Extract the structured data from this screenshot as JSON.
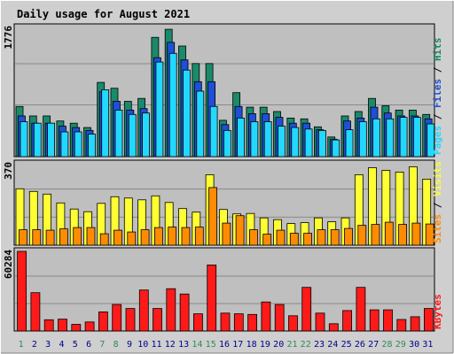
{
  "title": "Daily usage for August 2021",
  "colors": {
    "frame_bg": "#cfcfcf",
    "plot_bg": "#bfbfbf",
    "title": "#0000cc",
    "grid": "#8a8a8a",
    "hits": "#1a8a6a",
    "files": "#1f4fd6",
    "pages": "#22d8ff",
    "visits": "#ffff33",
    "sites": "#ff8c00",
    "kbytes": "#ff1a1a",
    "weekend_label": "#2e8b57",
    "weekday_label": "#00008b"
  },
  "chart_data": [
    {
      "type": "bar",
      "panel": "hits-files-pages",
      "categories": [
        "1",
        "2",
        "3",
        "4",
        "5",
        "6",
        "7",
        "8",
        "9",
        "10",
        "11",
        "12",
        "13",
        "14",
        "15",
        "16",
        "17",
        "18",
        "19",
        "20",
        "21",
        "22",
        "23",
        "24",
        "25",
        "26",
        "27",
        "28",
        "29",
        "30",
        "31"
      ],
      "ymax_label": "1776",
      "ymax": 1776,
      "series_labels": {
        "pages": "Pages",
        "sep1": " / ",
        "files": "Files",
        "sep2": " / ",
        "hits": "Hits"
      },
      "series": [
        {
          "name": "Hits",
          "values": [
            690,
            560,
            560,
            490,
            460,
            400,
            1020,
            940,
            760,
            800,
            1640,
            1750,
            1520,
            1280,
            1280,
            500,
            880,
            680,
            680,
            620,
            530,
            520,
            410,
            270,
            560,
            620,
            800,
            700,
            640,
            640,
            580
          ]
        },
        {
          "name": "Files",
          "values": [
            560,
            460,
            460,
            420,
            400,
            360,
            890,
            760,
            640,
            660,
            1360,
            1570,
            1330,
            1030,
            1030,
            440,
            690,
            590,
            590,
            540,
            460,
            460,
            370,
            240,
            490,
            530,
            680,
            600,
            560,
            560,
            520
          ]
        },
        {
          "name": "Pages",
          "values": [
            480,
            460,
            460,
            340,
            340,
            310,
            920,
            640,
            580,
            600,
            1300,
            1420,
            1190,
            900,
            690,
            360,
            530,
            480,
            480,
            420,
            400,
            380,
            360,
            230,
            370,
            480,
            520,
            520,
            540,
            540,
            450
          ]
        }
      ]
    },
    {
      "type": "bar",
      "panel": "visits-sites",
      "categories": [
        "1",
        "2",
        "3",
        "4",
        "5",
        "6",
        "7",
        "8",
        "9",
        "10",
        "11",
        "12",
        "13",
        "14",
        "15",
        "16",
        "17",
        "18",
        "19",
        "20",
        "21",
        "22",
        "23",
        "24",
        "25",
        "26",
        "27",
        "28",
        "29",
        "30",
        "31"
      ],
      "ymax_label": "370",
      "ymax": 370,
      "series_labels": {
        "sites": "Sites",
        "sep1": " / ",
        "visits": "Visits"
      },
      "series": [
        {
          "name": "Visits",
          "values": [
            256,
            244,
            232,
            192,
            164,
            152,
            190,
            220,
            214,
            206,
            224,
            194,
            166,
            150,
            320,
            162,
            142,
            144,
            124,
            116,
            98,
            102,
            124,
            106,
            124,
            320,
            352,
            340,
            332,
            356,
            300
          ]
        },
        {
          "name": "Sites",
          "values": [
            70,
            70,
            68,
            74,
            80,
            80,
            52,
            68,
            60,
            70,
            80,
            82,
            80,
            82,
            262,
            100,
            134,
            70,
            50,
            68,
            54,
            54,
            70,
            70,
            76,
            90,
            94,
            104,
            94,
            100,
            96
          ]
        }
      ]
    },
    {
      "type": "bar",
      "panel": "kbytes",
      "categories": [
        "1",
        "2",
        "3",
        "4",
        "5",
        "6",
        "7",
        "8",
        "9",
        "10",
        "11",
        "12",
        "13",
        "14",
        "15",
        "16",
        "17",
        "18",
        "19",
        "20",
        "21",
        "22",
        "23",
        "24",
        "25",
        "26",
        "27",
        "28",
        "29",
        "30",
        "31"
      ],
      "ymax_label": "60284",
      "ymax": 60284,
      "series_labels": {
        "kbytes": "KBytes"
      },
      "series": [
        {
          "name": "KBytes",
          "values": [
            60284,
            29000,
            8500,
            9000,
            5000,
            6800,
            14500,
            20000,
            17000,
            31000,
            17000,
            32000,
            28000,
            13000,
            50000,
            13500,
            13000,
            12500,
            22000,
            20000,
            11500,
            33000,
            13500,
            5500,
            15500,
            33000,
            16000,
            16000,
            8700,
            10800,
            17000
          ]
        }
      ]
    }
  ],
  "weekend_days": [
    "1",
    "7",
    "8",
    "14",
    "15",
    "21",
    "22",
    "28",
    "29"
  ]
}
